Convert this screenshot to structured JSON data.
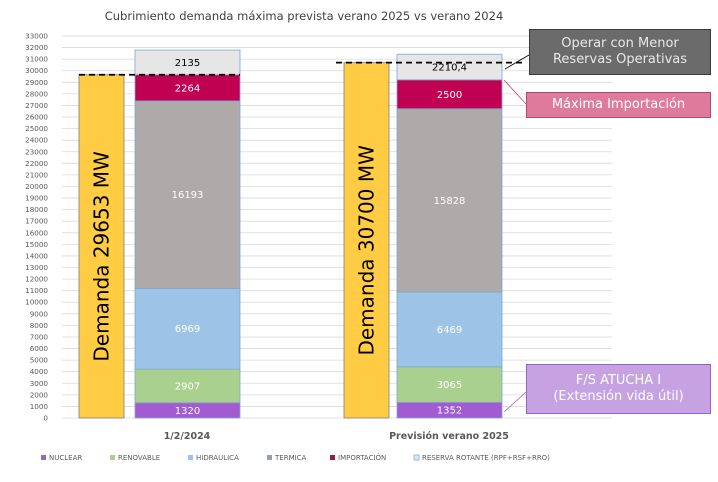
{
  "chart_data": {
    "type": "bar",
    "stacked": true,
    "title": "Cubrimiento demanda máxima prevista verano 2025 vs verano 2024",
    "xlabel": "",
    "ylabel": "",
    "ylim": [
      0,
      33000
    ],
    "ytick_step": 1000,
    "yticks": [
      "0",
      "1000",
      "2000",
      "3000",
      "4000",
      "5000",
      "6000",
      "7000",
      "8000",
      "9000",
      "10000",
      "11000",
      "12000",
      "13000",
      "14000",
      "15000",
      "16000",
      "17000",
      "18000",
      "19000",
      "20000",
      "21000",
      "22000",
      "23000",
      "24000",
      "25000",
      "26000",
      "27000",
      "28000",
      "29000",
      "30000",
      "31000",
      "32000",
      "33000"
    ],
    "grid": true,
    "categories": [
      "1/2/2024",
      "Previsión verano 2025"
    ],
    "demand": [
      {
        "label": "Demanda 29653 MW",
        "value": 29653,
        "color": "#ffcc44"
      },
      {
        "label": "Demanda 30700 MW",
        "value": 30700,
        "color": "#ffcc44"
      }
    ],
    "series": [
      {
        "name": "NUCLEAR",
        "color": "#a25bd1",
        "values": [
          1320,
          1352
        ],
        "labels": [
          "1320",
          "1352"
        ]
      },
      {
        "name": "RENOVABLE",
        "color": "#a9d08e",
        "values": [
          2907,
          3065
        ],
        "labels": [
          "2907",
          "3065"
        ]
      },
      {
        "name": "HIDRAULICA",
        "color": "#9dc3e6",
        "values": [
          6969,
          6469
        ],
        "labels": [
          "6969",
          "6469"
        ]
      },
      {
        "name": "TERMICA",
        "color": "#aeaaaa",
        "values": [
          16193,
          15828
        ],
        "labels": [
          "16193",
          "15828"
        ]
      },
      {
        "name": "IMPORTACIÓN",
        "color": "#c00050",
        "values": [
          2264,
          2500
        ],
        "labels": [
          "2264",
          "2500"
        ]
      },
      {
        "name": "RESERVA ROTANTE (RPF+RSF+RRO)",
        "color": "#e7e6e6",
        "values": [
          2135,
          2210.4
        ],
        "labels": [
          "2135",
          "2210,4"
        ]
      }
    ],
    "legend_position": "bottom",
    "legend_colors": [
      "#8e6bc9",
      "#a9d08e",
      "#9dc3e6",
      "#8ea0b8",
      "#9b1b45",
      "#dbe8f5"
    ],
    "annotations": [
      {
        "text_line1": "Operar con Menor",
        "text_line2": "Reservas Operativas",
        "style": "grey"
      },
      {
        "text": "Máxima Importación",
        "style": "pink"
      },
      {
        "text_line1": "F/S ATUCHA I",
        "text_line2": "(Extensión vida útil)",
        "style": "purple"
      }
    ]
  }
}
